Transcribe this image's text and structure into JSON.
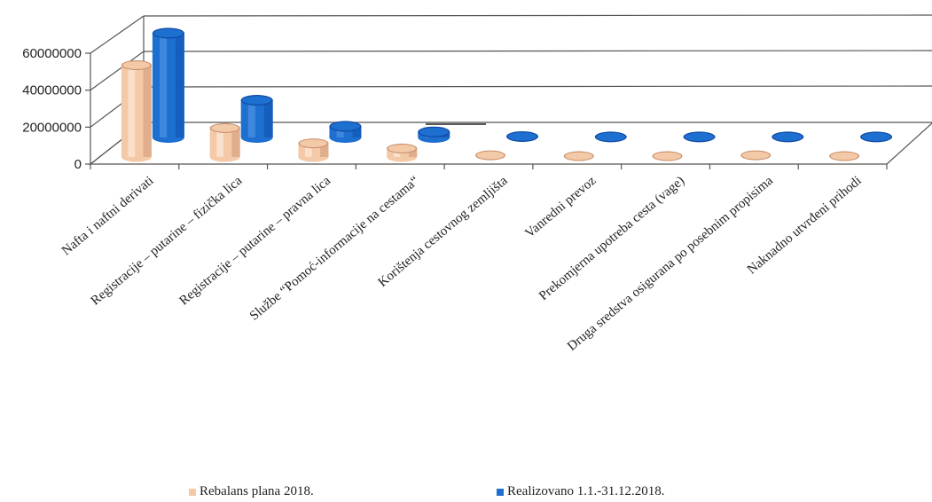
{
  "chart_data": {
    "type": "bar",
    "categories": [
      "Nafta i naftni derivati",
      "Registracije – putarine – fizička lica",
      "Registracije – putarine – pravna lica",
      "Službe “Pomoć-informacije na cestama“",
      "Korištenja cestovnog zemljišta",
      "Vanredni prevoz",
      "Prekomjerna upotreba cesta (vage)",
      "Druga sredstva osigurana po posebnim propisima",
      "Naknadno utvrđeni prihodi"
    ],
    "series": [
      {
        "name": "Rebalans plana 2018.",
        "color": "#f3c9a8",
        "values": [
          54000000,
          17000000,
          8000000,
          5000000,
          1000000,
          500000,
          500000,
          1000000,
          500000
        ]
      },
      {
        "name": "Realizovano 1.1.-31.12.2018.",
        "color": "#1d6fd0",
        "values": [
          56000000,
          20000000,
          6000000,
          3000000,
          500000,
          300000,
          300000,
          300000,
          300000
        ]
      }
    ],
    "yticks": [
      "0",
      "20000000",
      "40000000",
      "60000000"
    ],
    "ylim": [
      0,
      60000000
    ],
    "grid": true,
    "legend_position": "bottom"
  }
}
